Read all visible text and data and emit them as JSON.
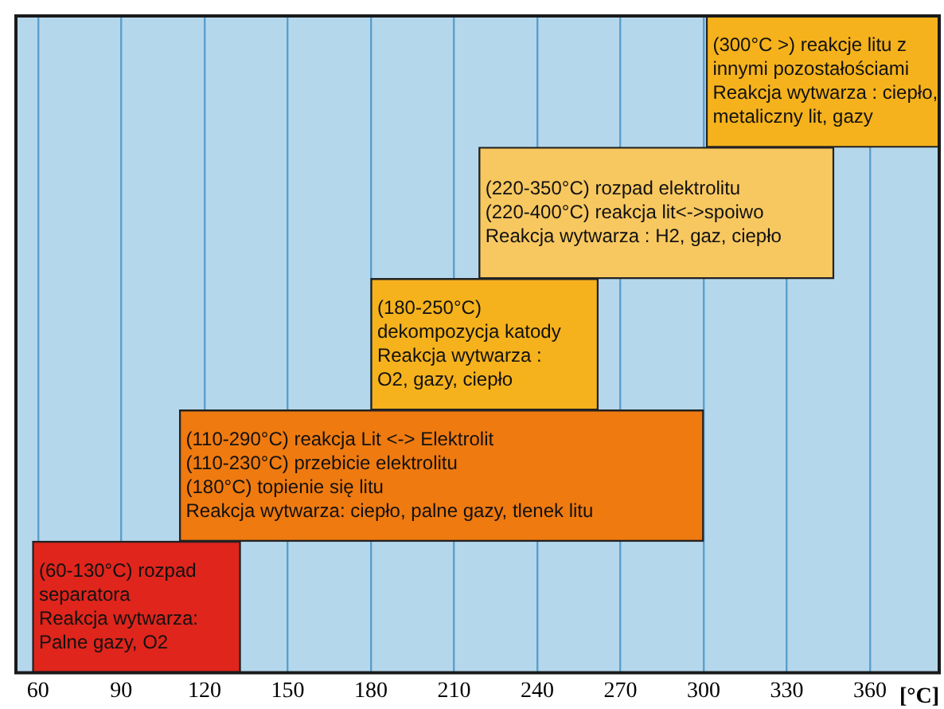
{
  "chart_data": {
    "type": "bar",
    "orientation": "horizontal",
    "xlabel": "[°C]",
    "categories": [
      null,
      null,
      null,
      null,
      null
    ],
    "base": [
      301,
      219,
      180,
      111,
      58
    ],
    "values": [
      84,
      128,
      82,
      189,
      75
    ],
    "colors": [
      "#f5b21c",
      "#f8c860",
      "#f5b21c",
      "#ef7a10",
      "#e0251c"
    ],
    "value_labels": [
      "(300°C >) reakcje litu z\ninnymi pozostałościami\nReakcja wytwarza : ciepło,\nmetaliczny lit, gazy",
      "(220-350°C) rozpad elektrolitu\n(220-400°C) reakcja lit<->spoiwo\nReakcja wytwarza : H2, gaz, ciepło",
      "(180-250°C)\ndekompozycja katody\nReakcja wytwarza :\nO2, gazy, ciepło",
      "(110-290°C) reakcja Lit <-> Elektrolit\n(110-230°C) przebicie elektrolitu\n(180°C) topienie się litu\nReakcja wytwarza: ciepło, palne gazy, tlenek litu",
      "(60-130°C) rozpad\nseparatora\nReakcja wytwarza:\nPalne gazy, O2"
    ],
    "xlim": [
      52,
      385
    ],
    "xticks": [
      60,
      90,
      120,
      150,
      180,
      210,
      240,
      270,
      300,
      330,
      360
    ],
    "grid": "x",
    "tick_labels": "x",
    "legend": false
  }
}
